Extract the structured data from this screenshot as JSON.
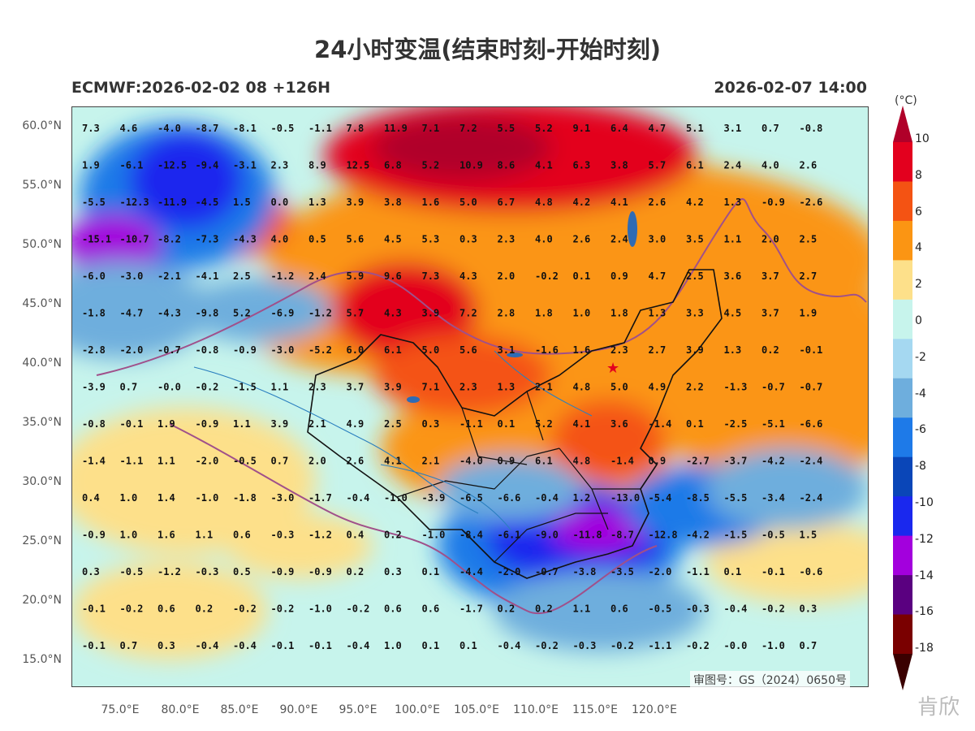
{
  "header": {
    "title": "24小时变温(结束时刻-开始时刻)",
    "model_run": "ECMWF:2026-02-02 08 +126H",
    "valid_time": "2026-02-07 14:00"
  },
  "map": {
    "lat_labels": [
      "60.0°N",
      "55.0°N",
      "50.0°N",
      "45.0°N",
      "40.0°N",
      "35.0°N",
      "30.0°N",
      "25.0°N",
      "20.0°N",
      "15.0°N"
    ],
    "lon_labels": [
      "75.0°E",
      "80.0°E",
      "85.0°E",
      "90.0°E",
      "95.0°E",
      "100.0°E",
      "105.0°E",
      "110.0°E",
      "115.0°E",
      "120.0°E"
    ],
    "approval_number": "审图号：GS（2024）0650号",
    "grid_values": [
      [
        "7.3",
        "4.6",
        "-4.0",
        "-8.7",
        "-8.1",
        "-0.5",
        "-1.1",
        "7.8",
        "11.9",
        "7.1",
        "7.2",
        "5.5",
        "5.2",
        "9.1",
        "6.4",
        "4.7",
        "5.1",
        "3.1",
        "0.7",
        "-0.8"
      ],
      [
        "1.9",
        "-6.1",
        "-12.5",
        "-9.4",
        "-3.1",
        "2.3",
        "8.9",
        "12.5",
        "6.8",
        "5.2",
        "10.9",
        "8.6",
        "4.1",
        "6.3",
        "3.8",
        "5.7",
        "6.1",
        "2.4",
        "4.0",
        "2.6"
      ],
      [
        "-5.5",
        "-12.3",
        "-11.9",
        "-4.5",
        "1.5",
        "0.0",
        "1.3",
        "3.9",
        "3.8",
        "1.6",
        "5.0",
        "6.7",
        "4.8",
        "4.2",
        "4.1",
        "2.6",
        "4.2",
        "1.3",
        "-0.9",
        "-2.6"
      ],
      [
        "-15.1",
        "-10.7",
        "-8.2",
        "-7.3",
        "-4.3",
        "4.0",
        "0.5",
        "5.6",
        "4.5",
        "5.3",
        "0.3",
        "2.3",
        "4.0",
        "2.6",
        "2.4",
        "3.0",
        "3.5",
        "1.1",
        "2.0",
        "2.5"
      ],
      [
        "-6.0",
        "-3.0",
        "-2.1",
        "-4.1",
        "2.5",
        "-1.2",
        "2.4",
        "5.9",
        "9.6",
        "7.3",
        "4.3",
        "2.0",
        "-0.2",
        "0.1",
        "0.9",
        "4.7",
        "2.5",
        "3.6",
        "3.7",
        "2.7"
      ],
      [
        "-1.8",
        "-4.7",
        "-4.3",
        "-9.8",
        "5.2",
        "-6.9",
        "-1.2",
        "5.7",
        "4.3",
        "3.9",
        "7.2",
        "2.8",
        "1.8",
        "1.0",
        "1.8",
        "1.3",
        "3.3",
        "4.5",
        "3.7",
        "1.9"
      ],
      [
        "-2.8",
        "-2.0",
        "-0.7",
        "-0.8",
        "-0.9",
        "-3.0",
        "-5.2",
        "6.0",
        "6.1",
        "5.0",
        "5.6",
        "3.1",
        "-1.6",
        "1.6",
        "2.3",
        "2.7",
        "3.9",
        "1.3",
        "0.2",
        "-0.1"
      ],
      [
        "-3.9",
        "0.7",
        "-0.0",
        "-0.2",
        "-1.5",
        "1.1",
        "2.3",
        "3.7",
        "3.9",
        "7.1",
        "2.3",
        "1.3",
        "2.1",
        "4.8",
        "5.0",
        "4.9",
        "2.2",
        "-1.3",
        "-0.7",
        "-0.7"
      ],
      [
        "-0.8",
        "-0.1",
        "1.9",
        "-0.9",
        "1.1",
        "3.9",
        "2.1",
        "4.9",
        "2.5",
        "0.3",
        "-1.1",
        "0.1",
        "5.2",
        "4.1",
        "3.6",
        "-1.4",
        "0.1",
        "-2.5",
        "-5.1",
        "-6.6"
      ],
      [
        "-1.4",
        "-1.1",
        "1.1",
        "-2.0",
        "-0.5",
        "0.7",
        "2.0",
        "2.6",
        "4.1",
        "2.1",
        "-4.0",
        "0.9",
        "6.1",
        "4.8",
        "-1.4",
        "0.9",
        "-2.7",
        "-3.7",
        "-4.2",
        "-2.4"
      ],
      [
        "0.4",
        "1.0",
        "1.4",
        "-1.0",
        "-1.8",
        "-3.0",
        "-1.7",
        "-0.4",
        "-1.0",
        "-3.9",
        "-6.5",
        "-6.6",
        "-0.4",
        "1.2",
        "-13.0",
        "-5.4",
        "-8.5",
        "-5.5",
        "-3.4",
        "-2.4"
      ],
      [
        "-0.9",
        "1.0",
        "1.6",
        "1.1",
        "0.6",
        "-0.3",
        "-1.2",
        "0.4",
        "0.2",
        "-1.0",
        "-8.4",
        "-6.1",
        "-9.0",
        "-11.8",
        "-8.7",
        "-12.8",
        "-4.2",
        "-1.5",
        "-0.5",
        "1.5"
      ],
      [
        "0.3",
        "-0.5",
        "-1.2",
        "-0.3",
        "0.5",
        "-0.9",
        "-0.9",
        "0.2",
        "0.3",
        "0.1",
        "-4.4",
        "-2.0",
        "-0.7",
        "-3.8",
        "-3.5",
        "-2.0",
        "-1.1",
        "0.1",
        "-0.1",
        "-0.6"
      ],
      [
        "-0.1",
        "-0.2",
        "0.6",
        "0.2",
        "-0.2",
        "-0.2",
        "-1.0",
        "-0.2",
        "0.6",
        "0.6",
        "-1.7",
        "0.2",
        "0.2",
        "1.1",
        "0.6",
        "-0.5",
        "-0.3",
        "-0.4",
        "-0.2",
        "0.3"
      ],
      [
        "-0.1",
        "0.7",
        "0.3",
        "-0.4",
        "-0.4",
        "-0.1",
        "-0.1",
        "-0.4",
        "1.0",
        "0.1",
        "0.1",
        "-0.4",
        "-0.2",
        "-0.3",
        "-0.2",
        "-1.1",
        "-0.2",
        "-0.0",
        "-1.0",
        "0.7"
      ]
    ]
  },
  "colorbar": {
    "unit": "(°C)",
    "labels": [
      "10",
      "8",
      "6",
      "4",
      "2",
      "0",
      "-2",
      "-4",
      "-6",
      "-8",
      "-10",
      "-12",
      "-14",
      "-16",
      "-18"
    ],
    "colors": [
      "#b00029",
      "#e3001e",
      "#f45313",
      "#fb9513",
      "#fde08a",
      "#c7f4ec",
      "#a5d8f1",
      "#6eaedd",
      "#1e7ae8",
      "#0a46b8",
      "#1a28ee",
      "#a300dd",
      "#5a0080",
      "#7a0000",
      "#3a0000"
    ]
  },
  "watermark": "肯欣"
}
